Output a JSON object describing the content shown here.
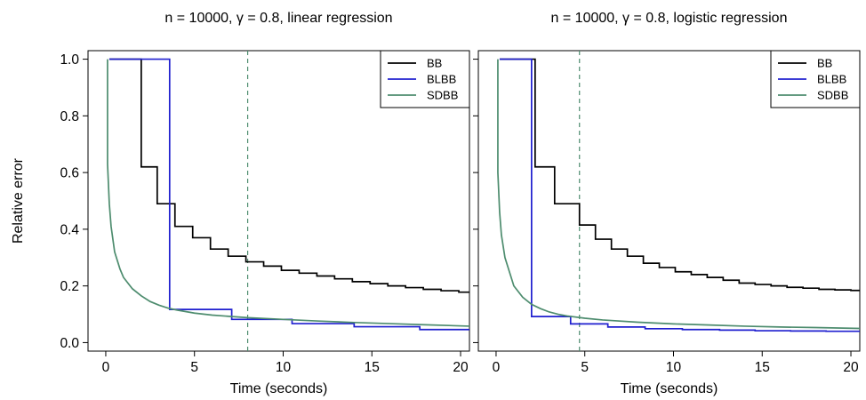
{
  "chart_data": [
    {
      "type": "line",
      "title": "n = 10000, γ = 0.8, linear regression",
      "xlabel": "Time (seconds)",
      "ylabel": "Relative error",
      "xlim": [
        -1,
        20.5
      ],
      "ylim": [
        -0.03,
        1.03
      ],
      "xticks": [
        0,
        5,
        10,
        15,
        20
      ],
      "yticks": [
        0.0,
        0.2,
        0.4,
        0.6,
        0.8,
        1.0
      ],
      "xtick_labels": [
        "0",
        "5",
        "10",
        "15",
        "20"
      ],
      "ytick_labels": [
        "0.0",
        "0.2",
        "0.4",
        "0.6",
        "0.8",
        "1.0"
      ],
      "legend_position": "top-right",
      "grid": false,
      "series": [
        {
          "name": "BB",
          "color": "#000000",
          "style": "step",
          "x": [
            0.2,
            2.0,
            2.0,
            2.9,
            2.9,
            3.9,
            3.9,
            4.9,
            4.9,
            5.9,
            5.9,
            6.9,
            6.9,
            7.9,
            7.9,
            8.9,
            8.9,
            9.9,
            9.9,
            10.9,
            10.9,
            11.9,
            11.9,
            12.9,
            12.9,
            13.9,
            13.9,
            14.9,
            14.9,
            15.9,
            15.9,
            16.9,
            16.9,
            17.9,
            17.9,
            18.9,
            18.9,
            19.9,
            19.9,
            20.5
          ],
          "y": [
            1.0,
            1.0,
            0.62,
            0.62,
            0.49,
            0.49,
            0.41,
            0.41,
            0.37,
            0.37,
            0.33,
            0.33,
            0.305,
            0.305,
            0.285,
            0.285,
            0.27,
            0.27,
            0.255,
            0.255,
            0.245,
            0.245,
            0.235,
            0.235,
            0.225,
            0.225,
            0.215,
            0.215,
            0.208,
            0.208,
            0.2,
            0.2,
            0.194,
            0.194,
            0.188,
            0.188,
            0.183,
            0.183,
            0.178,
            0.178
          ]
        },
        {
          "name": "BLBB",
          "color": "#1f1fcf",
          "style": "step",
          "x": [
            0.2,
            3.6,
            3.6,
            7.1,
            7.1,
            10.5,
            10.5,
            14.0,
            14.0,
            17.7,
            17.7,
            20.5
          ],
          "y": [
            1.0,
            1.0,
            0.117,
            0.117,
            0.082,
            0.082,
            0.067,
            0.067,
            0.056,
            0.056,
            0.046,
            0.046
          ]
        },
        {
          "name": "SDBB",
          "color": "#4d8c6e",
          "style": "line",
          "x": [
            0.1,
            0.1,
            0.2,
            0.3,
            0.5,
            0.8,
            1.0,
            1.5,
            2.0,
            2.5,
            3.0,
            3.5,
            4.0,
            5.0,
            6.0,
            8.0,
            10.0,
            12.0,
            14.0,
            16.0,
            18.0,
            20.5
          ],
          "y": [
            1.0,
            0.63,
            0.49,
            0.41,
            0.32,
            0.26,
            0.23,
            0.19,
            0.165,
            0.145,
            0.132,
            0.122,
            0.115,
            0.104,
            0.097,
            0.088,
            0.082,
            0.076,
            0.071,
            0.067,
            0.063,
            0.058
          ]
        }
      ],
      "annotations": [
        {
          "type": "vline",
          "x": 8.0,
          "color": "#4d8c6e",
          "style": "dashed"
        }
      ]
    },
    {
      "type": "line",
      "title": "n = 10000, γ = 0.8, logistic regression",
      "xlabel": "Time (seconds)",
      "ylabel": "",
      "xlim": [
        -1,
        20.5
      ],
      "ylim": [
        -0.03,
        1.03
      ],
      "xticks": [
        0,
        5,
        10,
        15,
        20
      ],
      "yticks": [
        0.0,
        0.2,
        0.4,
        0.6,
        0.8,
        1.0
      ],
      "xtick_labels": [
        "0",
        "5",
        "10",
        "15",
        "20"
      ],
      "ytick_labels": [],
      "legend_position": "top-right",
      "grid": false,
      "series": [
        {
          "name": "BB",
          "color": "#000000",
          "style": "step",
          "x": [
            0.2,
            2.2,
            2.2,
            3.3,
            3.3,
            4.7,
            4.7,
            5.6,
            5.6,
            6.5,
            6.5,
            7.4,
            7.4,
            8.3,
            8.3,
            9.2,
            9.2,
            10.1,
            10.1,
            11.0,
            11.0,
            11.9,
            11.9,
            12.8,
            12.8,
            13.7,
            13.7,
            14.6,
            14.6,
            15.5,
            15.5,
            16.4,
            16.4,
            17.3,
            17.3,
            18.2,
            18.2,
            19.1,
            19.1,
            20.0,
            20.0,
            20.5
          ],
          "y": [
            1.0,
            1.0,
            0.62,
            0.62,
            0.49,
            0.49,
            0.415,
            0.415,
            0.365,
            0.365,
            0.33,
            0.33,
            0.305,
            0.305,
            0.28,
            0.28,
            0.265,
            0.265,
            0.25,
            0.25,
            0.24,
            0.24,
            0.23,
            0.23,
            0.22,
            0.22,
            0.21,
            0.21,
            0.205,
            0.205,
            0.2,
            0.2,
            0.195,
            0.195,
            0.192,
            0.192,
            0.188,
            0.188,
            0.186,
            0.186,
            0.184,
            0.184
          ]
        },
        {
          "name": "BLBB",
          "color": "#1f1fcf",
          "style": "step",
          "x": [
            0.2,
            2.0,
            2.0,
            4.2,
            4.2,
            6.3,
            6.3,
            8.4,
            8.4,
            10.5,
            10.5,
            12.6,
            12.6,
            14.6,
            14.6,
            16.6,
            16.6,
            18.6,
            18.6,
            20.5
          ],
          "y": [
            1.0,
            1.0,
            0.092,
            0.092,
            0.066,
            0.066,
            0.055,
            0.055,
            0.049,
            0.049,
            0.046,
            0.046,
            0.044,
            0.044,
            0.042,
            0.042,
            0.041,
            0.041,
            0.04,
            0.04
          ]
        },
        {
          "name": "SDBB",
          "color": "#4d8c6e",
          "style": "line",
          "x": [
            0.1,
            0.1,
            0.2,
            0.3,
            0.5,
            0.8,
            1.0,
            1.5,
            2.0,
            2.5,
            3.0,
            3.5,
            4.0,
            5.0,
            6.0,
            8.0,
            10.0,
            12.0,
            14.0,
            16.0,
            18.0,
            20.5
          ],
          "y": [
            1.0,
            0.6,
            0.46,
            0.38,
            0.3,
            0.24,
            0.2,
            0.16,
            0.135,
            0.12,
            0.108,
            0.1,
            0.094,
            0.086,
            0.08,
            0.072,
            0.066,
            0.062,
            0.058,
            0.055,
            0.053,
            0.05
          ]
        }
      ],
      "annotations": [
        {
          "type": "vline",
          "x": 4.7,
          "color": "#4d8c6e",
          "style": "dashed"
        }
      ]
    }
  ]
}
